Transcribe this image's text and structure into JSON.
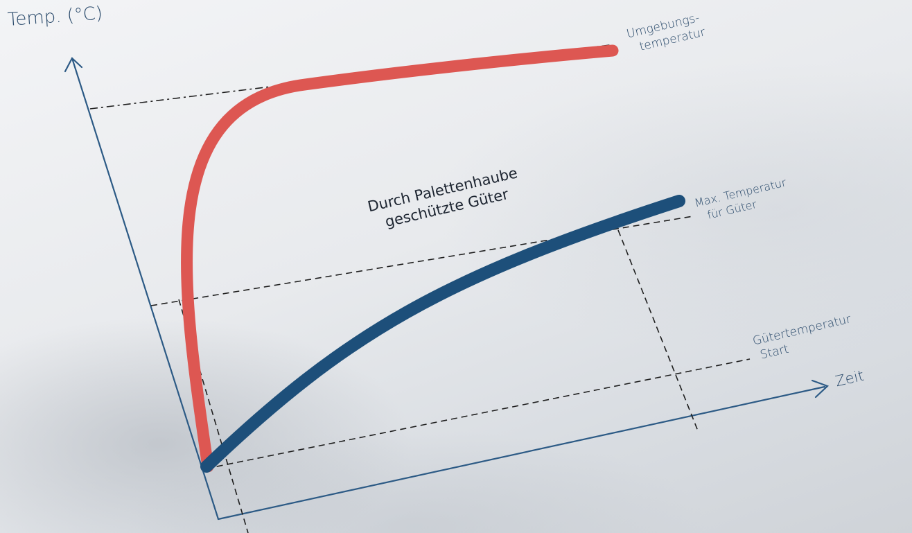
{
  "y_axis_label": "Temp. (°C)",
  "x_axis_label": "Zeit",
  "ambient_label_line1": "Umgebungs-",
  "ambient_label_line2": "temperatur",
  "max_label_line1": "Max. Temperatur",
  "max_label_line2": "für Güter",
  "start_label_line1": "Gütertemperatur",
  "start_label_line2": "Start",
  "goods_label_line1": "Durch Palettenhaube",
  "goods_label_line2": "geschützte Güter",
  "colors": {
    "ambient_curve": "#dd5752",
    "goods_curve": "#1d4f7a",
    "axis": "#2c5a85",
    "guides": "#1e1e1e"
  }
}
